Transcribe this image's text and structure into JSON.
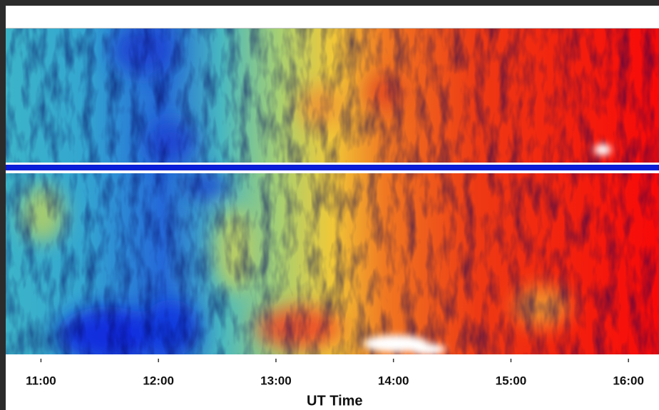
{
  "chart_data": {
    "type": "heatmap",
    "xlabel": "UT Time",
    "xlim": [
      10.7,
      16.26
    ],
    "xticks": [
      {
        "value": 11,
        "label": "11:00"
      },
      {
        "value": 12,
        "label": "12:00"
      },
      {
        "value": 13,
        "label": "13:00"
      },
      {
        "value": 14,
        "label": "14:00"
      },
      {
        "value": 15,
        "label": "15:00"
      },
      {
        "value": 16,
        "label": "16:00"
      }
    ]
  }
}
